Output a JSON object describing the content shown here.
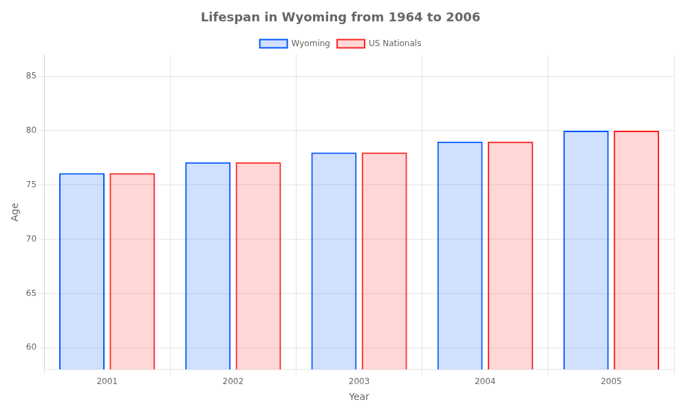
{
  "chart_data": {
    "type": "bar",
    "title": "Lifespan in Wyoming from 1964 to 2006",
    "x_label": "Year",
    "y_label": "Age",
    "categories": [
      "2001",
      "2002",
      "2003",
      "2004",
      "2005"
    ],
    "series": [
      {
        "name": "Wyoming",
        "color": "#0055ff",
        "values": [
          76.1,
          77.1,
          78.0,
          79.0,
          80.0
        ]
      },
      {
        "name": "US Nationals",
        "color": "#ff2222",
        "values": [
          76.1,
          77.1,
          78.0,
          79.0,
          80.0
        ]
      }
    ],
    "ylim": [
      58,
      87
    ],
    "yticks": [
      60,
      65,
      70,
      75,
      80,
      85
    ],
    "grid": true,
    "legend": "top"
  }
}
